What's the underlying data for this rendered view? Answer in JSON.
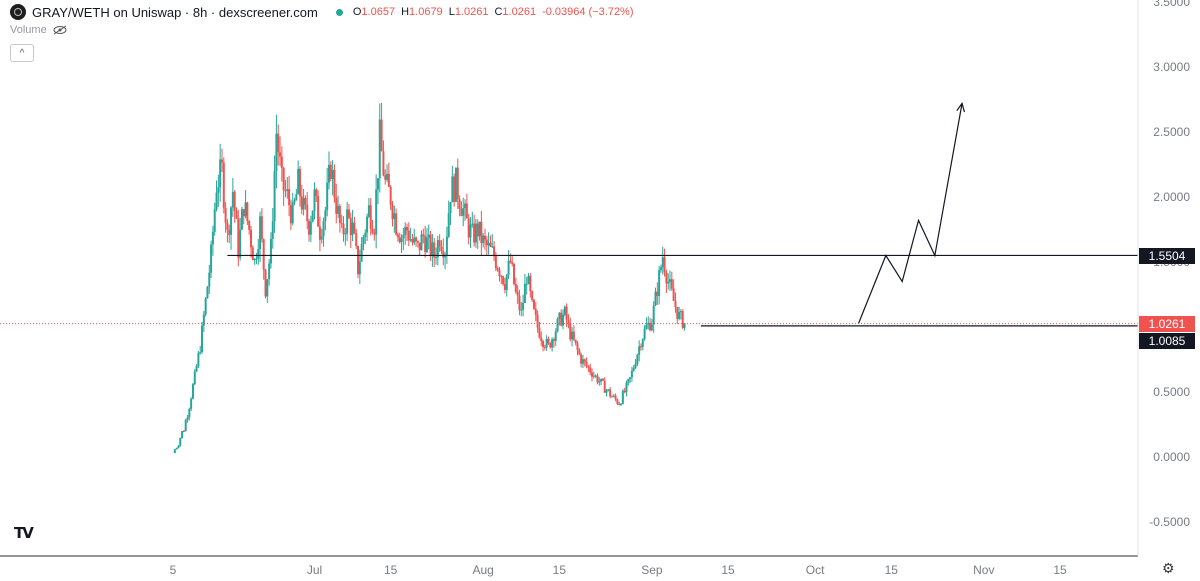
{
  "header": {
    "title": "GRAY/WETH on Uniswap · 8h · dexscreener.com",
    "ohlc": [
      {
        "key": "O",
        "value": "1.0657"
      },
      {
        "key": "H",
        "value": "1.0679"
      },
      {
        "key": "L",
        "value": "1.0261"
      },
      {
        "key": "C",
        "value": "1.0261"
      },
      {
        "key": "chg",
        "value": "-0.03964 (−3.72%)"
      }
    ],
    "volume_label": "Volume",
    "collapse_glyph": "^"
  },
  "colors": {
    "up": "#26a69a",
    "down": "#ef5350",
    "line": "#131722",
    "axis_text": "#787b86"
  },
  "icons": {
    "logo": "tradingview-logo",
    "settings": "gear-icon",
    "visibility": "eye-off-icon"
  },
  "branding": {
    "tv_mark": "TV"
  },
  "chart_data": {
    "type": "candlestick",
    "ylim": [
      -0.55,
      3.55
    ],
    "y_ticks": [
      "3.5000",
      "3.0000",
      "2.5000",
      "2.0000",
      "1.5000",
      "1.0000",
      "0.5000",
      "0.0000",
      "-0.5000"
    ],
    "x_ticks": [
      {
        "label": "5",
        "day": 5
      },
      {
        "label": "Jul",
        "day": 31
      },
      {
        "label": "15",
        "day": 45
      },
      {
        "label": "Aug",
        "day": 62
      },
      {
        "label": "15",
        "day": 76
      },
      {
        "label": "Sep",
        "day": 93
      },
      {
        "label": "15",
        "day": 107
      },
      {
        "label": "Oct",
        "day": 123
      },
      {
        "label": "15",
        "day": 137
      },
      {
        "label": "Nov",
        "day": 154
      },
      {
        "label": "15",
        "day": 168
      }
    ],
    "price_path": [
      [
        5,
        0.03
      ],
      [
        6,
        0.12
      ],
      [
        7,
        0.22
      ],
      [
        8,
        0.4
      ],
      [
        9,
        0.62
      ],
      [
        10,
        0.85
      ],
      [
        11,
        1.2
      ],
      [
        12,
        1.55
      ],
      [
        13,
        2.1
      ],
      [
        14,
        2.2
      ],
      [
        15,
        1.7
      ],
      [
        16,
        2.05
      ],
      [
        17,
        1.6
      ],
      [
        18,
        1.95
      ],
      [
        19,
        1.75
      ],
      [
        20,
        1.5
      ],
      [
        21,
        1.8
      ],
      [
        22,
        1.3
      ],
      [
        23,
        1.6
      ],
      [
        24,
        2.5
      ],
      [
        25,
        2.1
      ],
      [
        26,
        2.0
      ],
      [
        27,
        1.85
      ],
      [
        28,
        2.1
      ],
      [
        29,
        1.9
      ],
      [
        30,
        1.8
      ],
      [
        31,
        2.0
      ],
      [
        32,
        1.75
      ],
      [
        33,
        1.9
      ],
      [
        34,
        2.25
      ],
      [
        35,
        1.95
      ],
      [
        36,
        1.7
      ],
      [
        37,
        1.85
      ],
      [
        38,
        1.75
      ],
      [
        39,
        1.45
      ],
      [
        40,
        1.7
      ],
      [
        41,
        1.9
      ],
      [
        42,
        1.8
      ],
      [
        43,
        2.45
      ],
      [
        44,
        2.1
      ],
      [
        45,
        2.0
      ],
      [
        46,
        1.8
      ],
      [
        47,
        1.7
      ],
      [
        48,
        1.75
      ],
      [
        49,
        1.65
      ],
      [
        50,
        1.6
      ],
      [
        51,
        1.7
      ],
      [
        52,
        1.62
      ],
      [
        53,
        1.55
      ],
      [
        54,
        1.7
      ],
      [
        55,
        1.6
      ],
      [
        56,
        2.05
      ],
      [
        57,
        2.1
      ],
      [
        58,
        1.95
      ],
      [
        59,
        1.8
      ],
      [
        60,
        1.7
      ],
      [
        61,
        1.75
      ],
      [
        62,
        1.65
      ],
      [
        63,
        1.6
      ],
      [
        64,
        1.55
      ],
      [
        65,
        1.45
      ],
      [
        66,
        1.35
      ],
      [
        67,
        1.5
      ],
      [
        68,
        1.25
      ],
      [
        69,
        1.1
      ],
      [
        70,
        1.4
      ],
      [
        71,
        1.15
      ],
      [
        72,
        1.0
      ],
      [
        73,
        0.9
      ],
      [
        74,
        0.85
      ],
      [
        75,
        0.95
      ],
      [
        76,
        1.05
      ],
      [
        77,
        1.1
      ],
      [
        78,
        0.95
      ],
      [
        79,
        0.85
      ],
      [
        80,
        0.75
      ],
      [
        81,
        0.7
      ],
      [
        82,
        0.65
      ],
      [
        83,
        0.6
      ],
      [
        84,
        0.55
      ],
      [
        85,
        0.5
      ],
      [
        86,
        0.45
      ],
      [
        87,
        0.42
      ],
      [
        88,
        0.5
      ],
      [
        89,
        0.6
      ],
      [
        90,
        0.75
      ],
      [
        91,
        0.9
      ],
      [
        92,
        1.0
      ],
      [
        93,
        1.05
      ],
      [
        94,
        1.3
      ],
      [
        95,
        1.55
      ],
      [
        96,
        1.35
      ],
      [
        97,
        1.2
      ],
      [
        98,
        1.08
      ],
      [
        99,
        1.03
      ]
    ],
    "h_lines": [
      {
        "value": 1.5504,
        "label": "1.5504",
        "from_day": 15,
        "to_day": 171,
        "style": "solid"
      },
      {
        "value": 1.0085,
        "label": "1.0085",
        "from_day": 102,
        "to_day": 171,
        "style": "solid"
      },
      {
        "value": 1.0261,
        "label": "1.0261",
        "from_day": 0,
        "to_day": 171,
        "style": "dotted"
      }
    ],
    "projection": [
      [
        101,
        1.03
      ],
      [
        106,
        1.55
      ],
      [
        109,
        1.35
      ],
      [
        112,
        1.82
      ],
      [
        115,
        1.55
      ],
      [
        120,
        2.72
      ]
    ],
    "current_price": "1.0261"
  }
}
